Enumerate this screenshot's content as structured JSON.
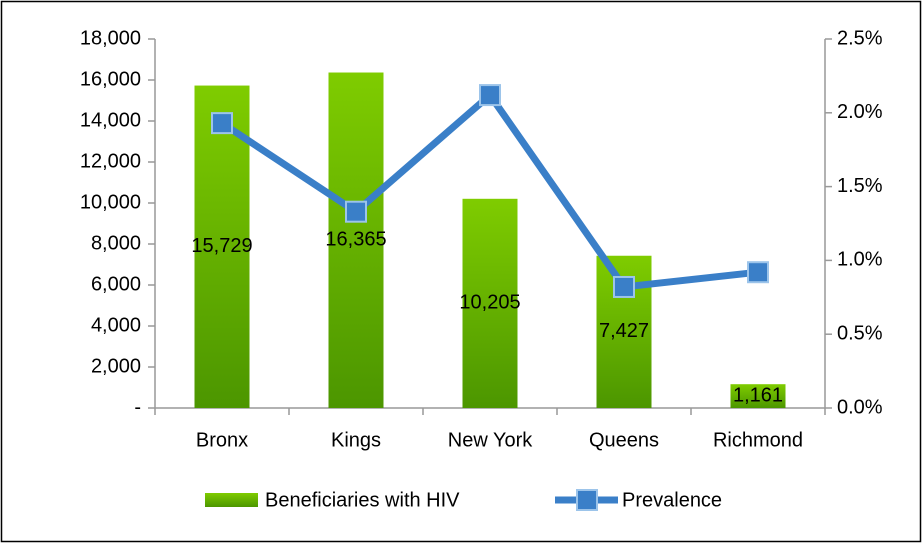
{
  "chart_data": {
    "type": "bar",
    "categories": [
      "Bronx",
      "Kings",
      "New York",
      "Queens",
      "Richmond"
    ],
    "series": [
      {
        "name": "Beneficiaries with HIV",
        "type": "bar",
        "color": "#5fae00",
        "values": [
          15729,
          16365,
          10205,
          7427,
          1161
        ],
        "value_labels": [
          "15,729",
          "16,365",
          "10,205",
          "7,427",
          "1,161"
        ]
      },
      {
        "name": "Prevalence",
        "type": "line",
        "axis": "y2",
        "color": "#3a7fc8",
        "values": [
          1.93,
          1.33,
          2.12,
          0.82,
          0.92
        ]
      }
    ],
    "ylim": [
      0,
      18000
    ],
    "yticks": [
      {
        "value": 0,
        "label": "-"
      },
      {
        "value": 2000,
        "label": "2,000"
      },
      {
        "value": 4000,
        "label": "4,000"
      },
      {
        "value": 6000,
        "label": "6,000"
      },
      {
        "value": 8000,
        "label": "8,000"
      },
      {
        "value": 10000,
        "label": "10,000"
      },
      {
        "value": 12000,
        "label": "12,000"
      },
      {
        "value": 14000,
        "label": "14,000"
      },
      {
        "value": 16000,
        "label": "16,000"
      },
      {
        "value": 18000,
        "label": "18,000"
      }
    ],
    "y2lim": [
      0,
      2.5
    ],
    "y2ticks": [
      {
        "value": 0,
        "label": "0.0%"
      },
      {
        "value": 0.5,
        "label": "0.5%"
      },
      {
        "value": 1,
        "label": "1.0%"
      },
      {
        "value": 1.5,
        "label": "1.5%"
      },
      {
        "value": 2,
        "label": "2.0%"
      },
      {
        "value": 2.5,
        "label": "2.5%"
      }
    ],
    "legend": "bottom"
  }
}
